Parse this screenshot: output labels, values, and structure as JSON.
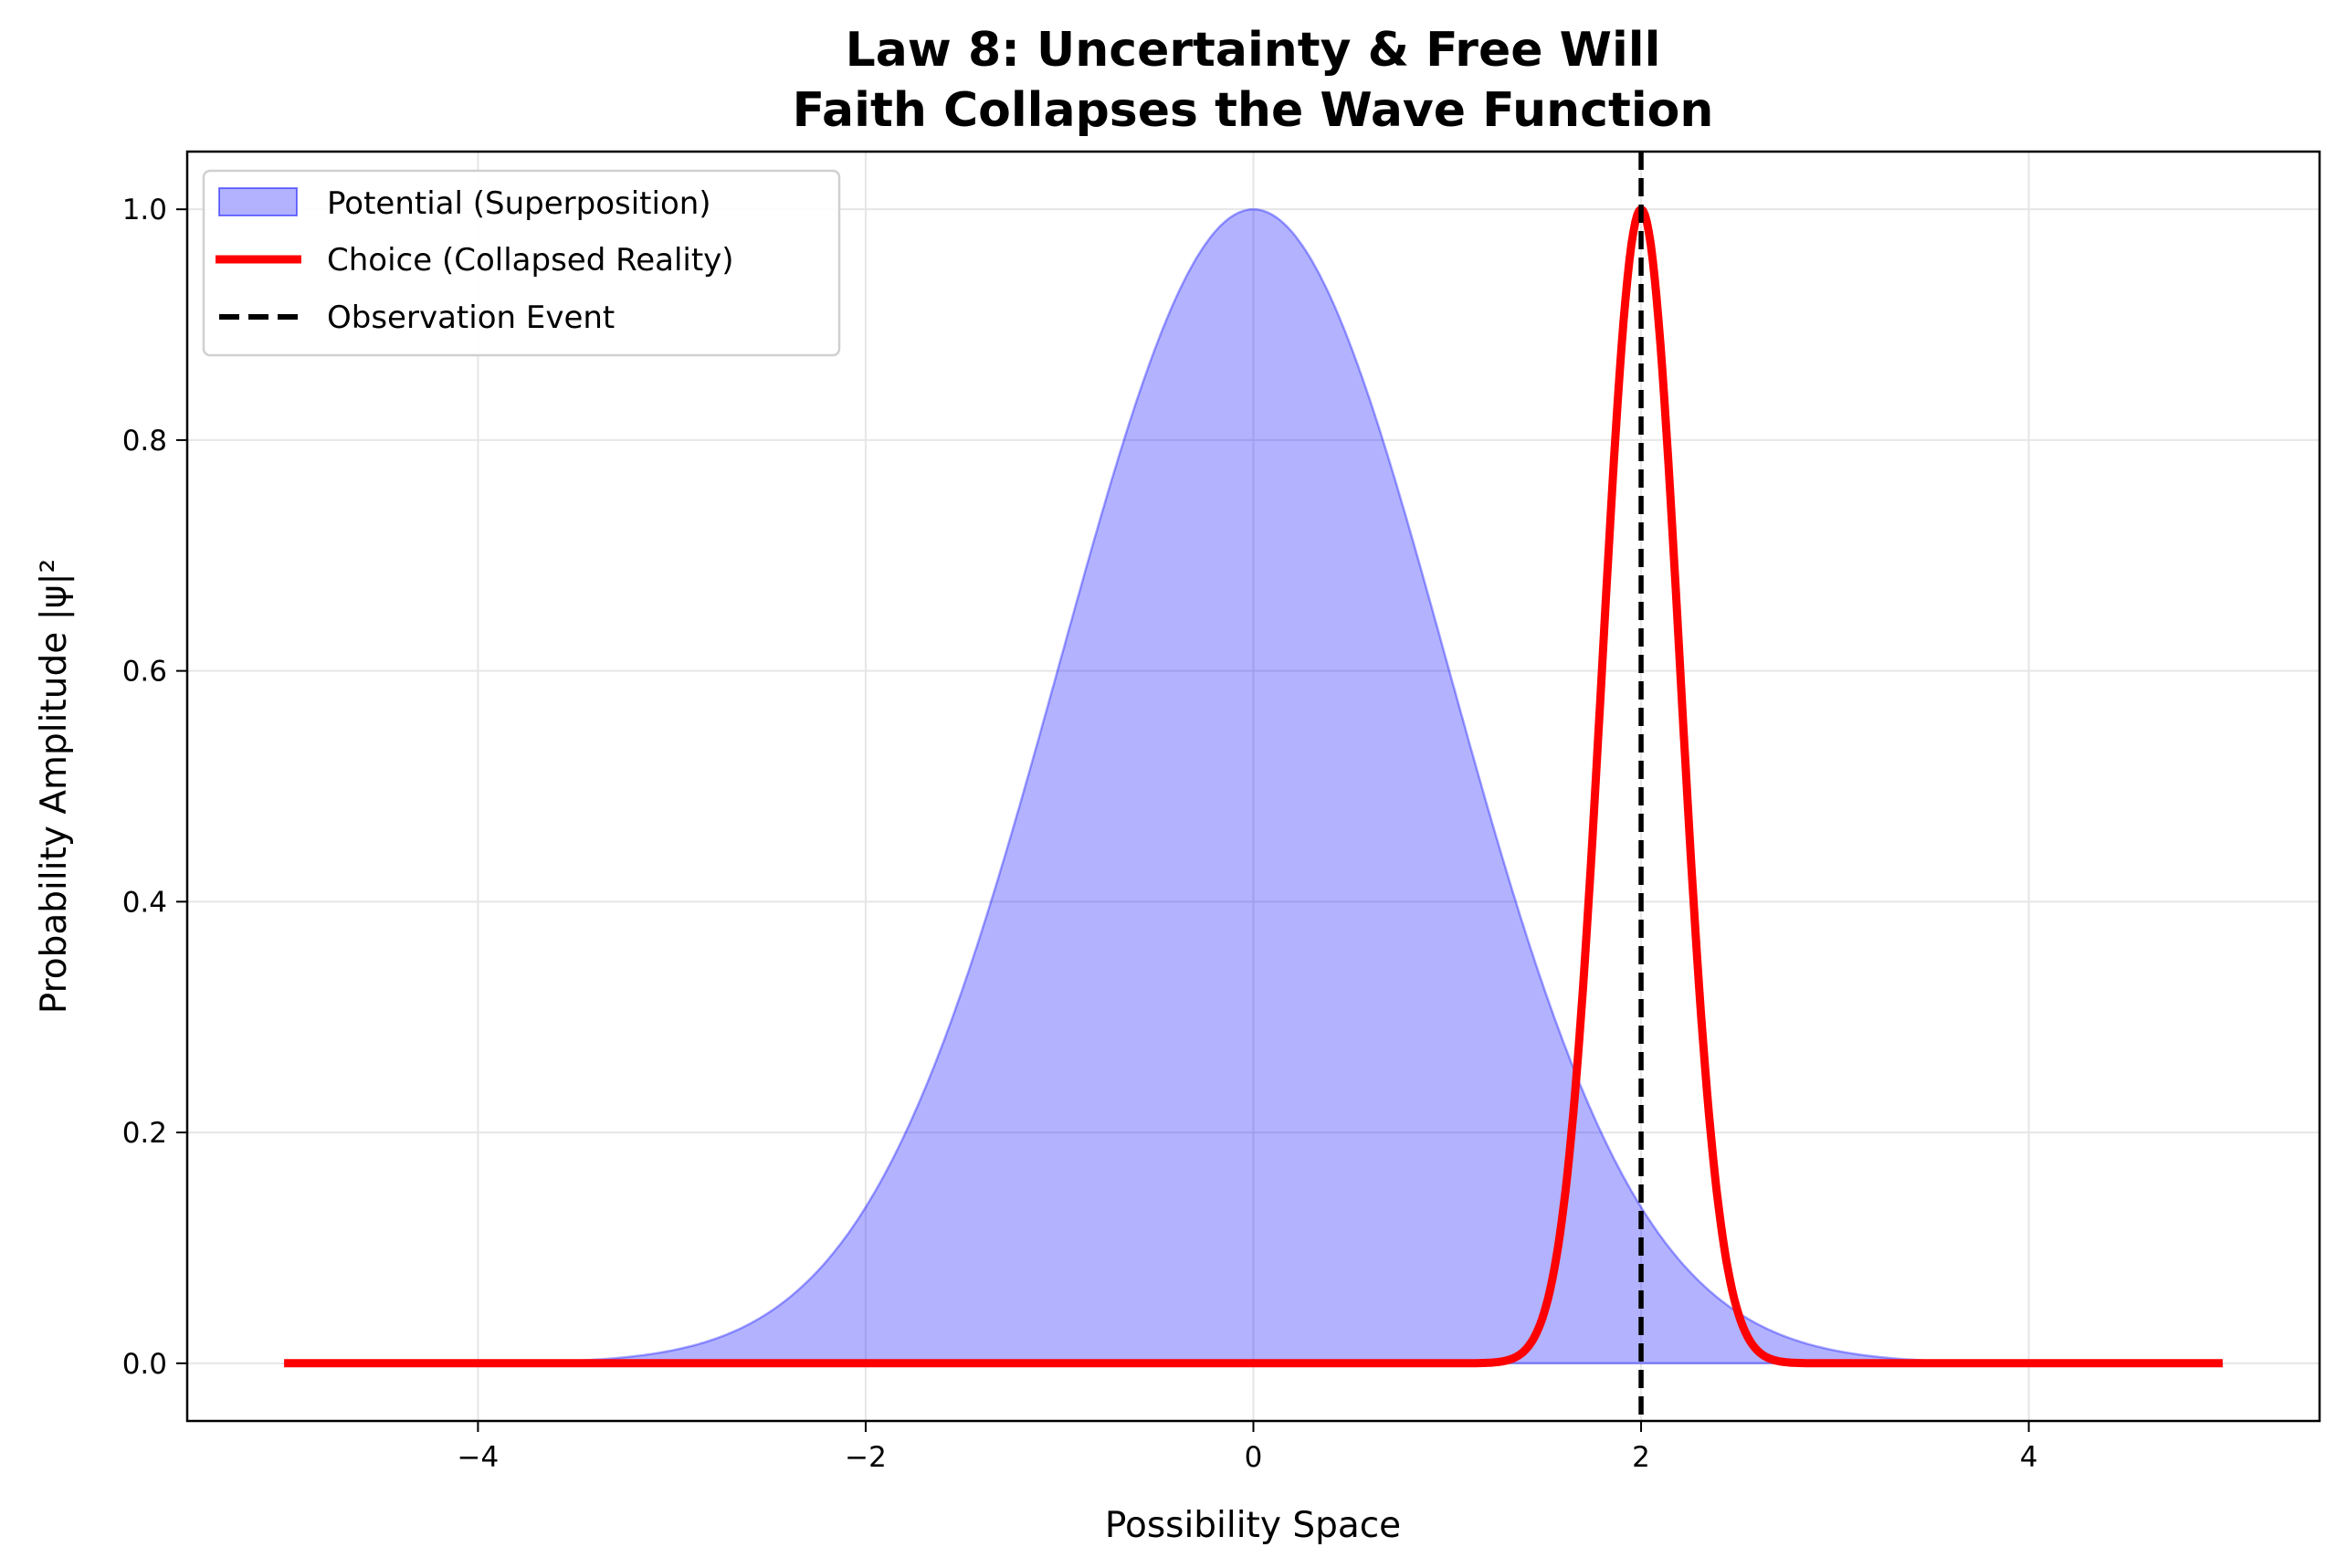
{
  "chart_data": {
    "type": "line",
    "title": "Law 8: Uncertainty & Free Will",
    "subtitle": "Faith Collapses the Wave Function",
    "xlabel": "Possibility Space",
    "ylabel": "Probability Amplitude |ψ|²",
    "xlim": [
      -5.5,
      5.5
    ],
    "ylim": [
      -0.05,
      1.05
    ],
    "xticks": [
      -4,
      -2,
      0,
      2,
      4
    ],
    "xtick_labels": [
      "−4",
      "−2",
      "0",
      "2",
      "4"
    ],
    "yticks": [
      0.0,
      0.2,
      0.4,
      0.6,
      0.8,
      1.0
    ],
    "ytick_labels": [
      "0.0",
      "0.2",
      "0.4",
      "0.6",
      "0.8",
      "1.0"
    ],
    "grid": true,
    "legend_position": "top-left",
    "x_range": [
      -5,
      5
    ],
    "series": [
      {
        "name": "Potential (Superposition)",
        "kind": "area",
        "function": "gaussian",
        "mean": 0,
        "sigma": 1.0,
        "amplitude": 1.0,
        "color": "#0000ff",
        "alpha": 0.3
      },
      {
        "name": "Choice (Collapsed Reality)",
        "kind": "line",
        "function": "gaussian",
        "mean": 2,
        "sigma": 0.2,
        "amplitude": 1.0,
        "color": "#ff0000"
      },
      {
        "name": "Observation Event",
        "kind": "vline",
        "x": 2,
        "color": "#000000",
        "style": "dashed"
      }
    ]
  }
}
